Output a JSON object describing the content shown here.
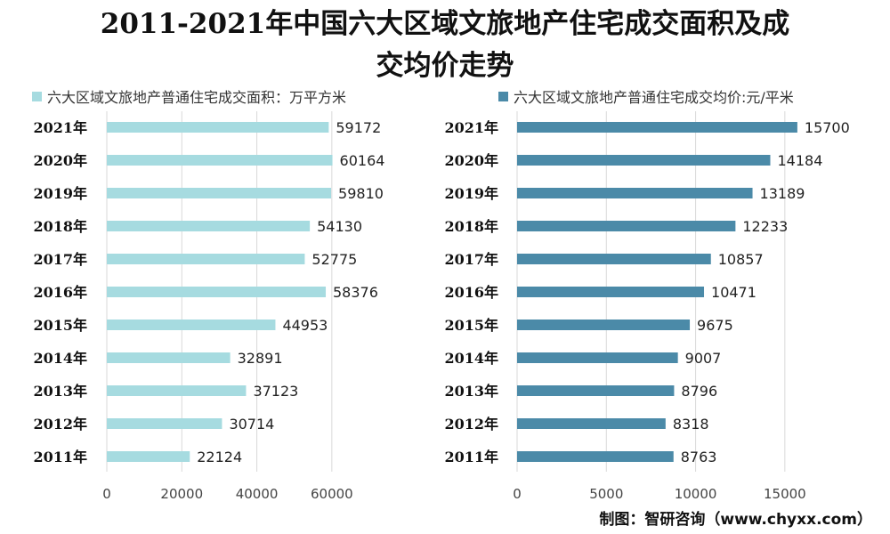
{
  "title_line1": "2011-2021年中国六大区域文旅地产住宅成交面积及成",
  "title_line2": "交均价走势",
  "source": "制图：智研咨询（www.chyxx.com）",
  "colors": {
    "area": "#a6dbe0",
    "price": "#4b8aa8",
    "grid": "#d9d9d9"
  },
  "chart_data": [
    {
      "type": "bar",
      "orientation": "horizontal",
      "legend": "六大区域文旅地产普通住宅成交面积：万平方米",
      "categories": [
        "2021年",
        "2020年",
        "2019年",
        "2018年",
        "2017年",
        "2016年",
        "2015年",
        "2014年",
        "2013年",
        "2012年",
        "2011年"
      ],
      "values": [
        59172,
        60164,
        59810,
        54130,
        52775,
        58376,
        44953,
        32891,
        37123,
        30714,
        22124
      ],
      "xticks": [
        "0",
        "20000",
        "40000",
        "60000"
      ],
      "xlim": [
        0,
        70000
      ]
    },
    {
      "type": "bar",
      "orientation": "horizontal",
      "legend": "六大区域文旅地产普通住宅成交均价:元/平米",
      "categories": [
        "2021年",
        "2020年",
        "2019年",
        "2018年",
        "2017年",
        "2016年",
        "2015年",
        "2014年",
        "2013年",
        "2012年",
        "2011年"
      ],
      "values": [
        15700,
        14184,
        13189,
        12233,
        10857,
        10471,
        9675,
        9007,
        8796,
        8318,
        8763
      ],
      "xticks": [
        "0",
        "5000",
        "10000",
        "15000"
      ],
      "xlim": [
        0,
        17500
      ]
    }
  ]
}
